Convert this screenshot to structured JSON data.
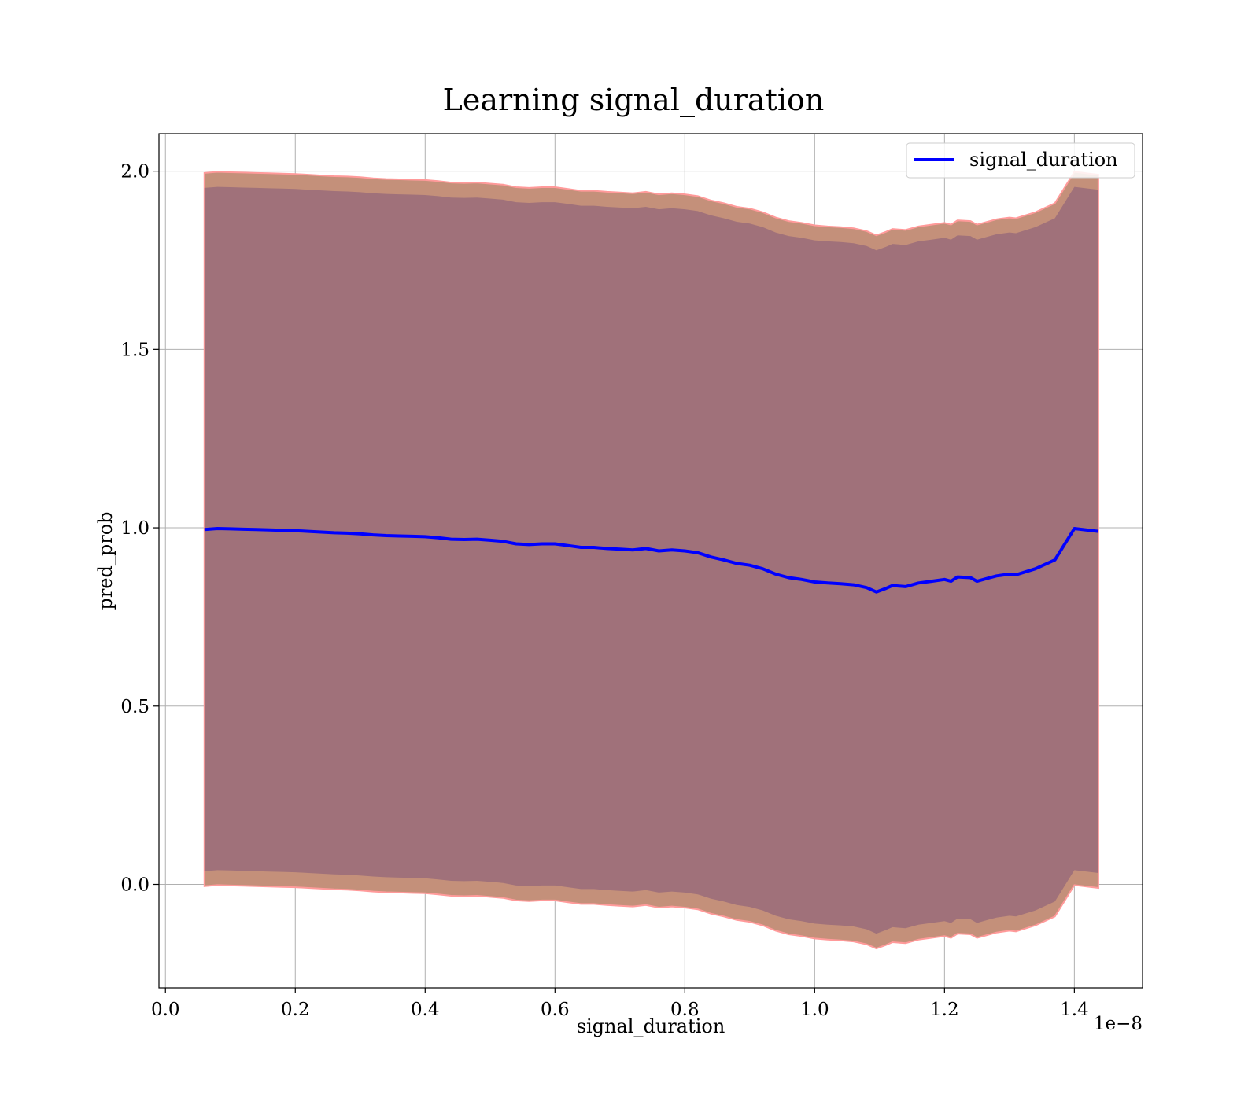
{
  "chart_data": {
    "type": "line",
    "title": "Learning signal_duration",
    "xlabel": "signal_duration",
    "ylabel": "pred_prob",
    "x_offset_label": "1e−8",
    "x_scale_factor": 1e-08,
    "xlim": [
      -0.01,
      1.505
    ],
    "ylim": [
      -0.29,
      2.105
    ],
    "x_ticks": [
      0.0,
      0.2,
      0.4,
      0.6,
      0.8,
      1.0,
      1.2,
      1.4
    ],
    "x_tick_labels": [
      "0.0",
      "0.2",
      "0.4",
      "0.6",
      "0.8",
      "1.0",
      "1.2",
      "1.4"
    ],
    "y_ticks": [
      0.0,
      0.5,
      1.0,
      1.5,
      2.0
    ],
    "y_tick_labels": [
      "0.0",
      "0.5",
      "1.0",
      "1.5",
      "2.0"
    ],
    "grid": true,
    "legend": {
      "position": "top-right",
      "entries": [
        "signal_duration"
      ]
    },
    "colors": {
      "line": "#0000ff",
      "outer_band": "#c4907a",
      "outer_band_edge": "#ff9a9a",
      "inner_band": "#a0717a",
      "grid": "#b0b0b0"
    },
    "series": [
      {
        "name": "signal_duration",
        "x": [
          0.06,
          0.08,
          0.1,
          0.12,
          0.14,
          0.16,
          0.18,
          0.2,
          0.22,
          0.24,
          0.26,
          0.28,
          0.3,
          0.32,
          0.34,
          0.36,
          0.38,
          0.4,
          0.42,
          0.44,
          0.46,
          0.48,
          0.5,
          0.52,
          0.54,
          0.56,
          0.58,
          0.6,
          0.62,
          0.64,
          0.66,
          0.68,
          0.7,
          0.72,
          0.74,
          0.76,
          0.78,
          0.8,
          0.82,
          0.84,
          0.86,
          0.88,
          0.9,
          0.92,
          0.94,
          0.96,
          0.98,
          1.0,
          1.02,
          1.04,
          1.06,
          1.08,
          1.095,
          1.11,
          1.12,
          1.14,
          1.16,
          1.18,
          1.2,
          1.21,
          1.22,
          1.24,
          1.25,
          1.27,
          1.28,
          1.3,
          1.31,
          1.34,
          1.37,
          1.4,
          1.437
        ],
        "y": [
          0.995,
          0.998,
          0.997,
          0.996,
          0.995,
          0.994,
          0.993,
          0.992,
          0.99,
          0.988,
          0.986,
          0.985,
          0.983,
          0.98,
          0.978,
          0.977,
          0.976,
          0.975,
          0.972,
          0.968,
          0.967,
          0.968,
          0.965,
          0.962,
          0.955,
          0.953,
          0.955,
          0.955,
          0.95,
          0.945,
          0.945,
          0.942,
          0.94,
          0.938,
          0.942,
          0.935,
          0.938,
          0.935,
          0.93,
          0.918,
          0.91,
          0.9,
          0.895,
          0.885,
          0.87,
          0.86,
          0.855,
          0.848,
          0.845,
          0.843,
          0.84,
          0.832,
          0.82,
          0.83,
          0.838,
          0.835,
          0.845,
          0.85,
          0.855,
          0.85,
          0.862,
          0.86,
          0.85,
          0.86,
          0.865,
          0.87,
          0.868,
          0.885,
          0.91,
          0.998,
          0.99
        ]
      }
    ],
    "bands": [
      {
        "name": "outer",
        "lower_offset": -1.0,
        "upper_offset": 1.0
      },
      {
        "name": "inner",
        "lower_offset": -0.958,
        "upper_offset": 0.958
      }
    ]
  }
}
